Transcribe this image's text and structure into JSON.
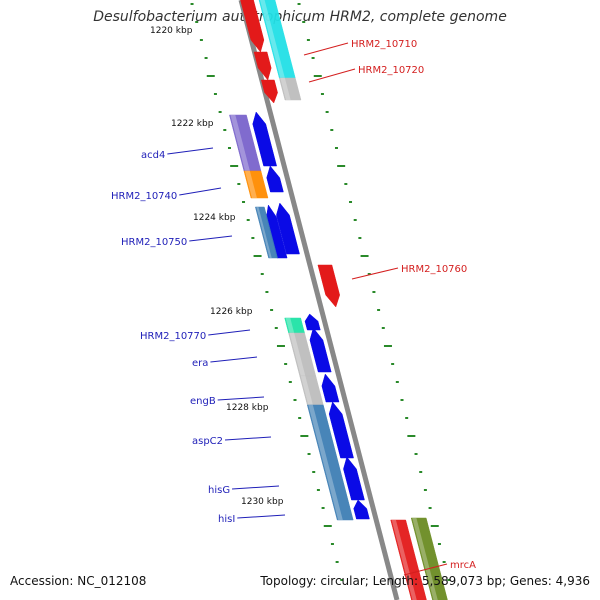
{
  "title": "Desulfobacterium autotrophicum HRM2, complete genome",
  "footer": {
    "accession": "Accession: NC_012108",
    "topology": "Topology: circular; Length: 5,589,073 bp; Genes: 4,936"
  },
  "colors": {
    "backbone": "#888888",
    "ruler_tick": "#2a8a2a",
    "reverse_label": "#1f1fb8",
    "forward_label": "#d41f1f",
    "gene_blue": "#0a0ae6",
    "gene_red": "#e31a1a",
    "gene_cyan": "#22e0e6",
    "gene_gray": "#bdbdbd",
    "gene_purple": "#7a64cc",
    "gene_orange": "#ff8c00",
    "gene_steelblue": "#3f7fb5",
    "gene_teal": "#1fe3a6",
    "gene_olive": "#6b8c22"
  },
  "ruler_labels": [
    "1220 kbp",
    "1222 kbp",
    "1224 kbp",
    "1226 kbp",
    "1228 kbp",
    "1230 kbp"
  ],
  "gene_labels": {
    "left": [
      "acd4",
      "HRM2_10740",
      "HRM2_10750",
      "HRM2_10770",
      "era",
      "engB",
      "aspC2",
      "hisG",
      "hisI"
    ],
    "right": [
      "HRM2_10710",
      "HRM2_10720",
      "HRM2_10760",
      "mrcA"
    ]
  }
}
